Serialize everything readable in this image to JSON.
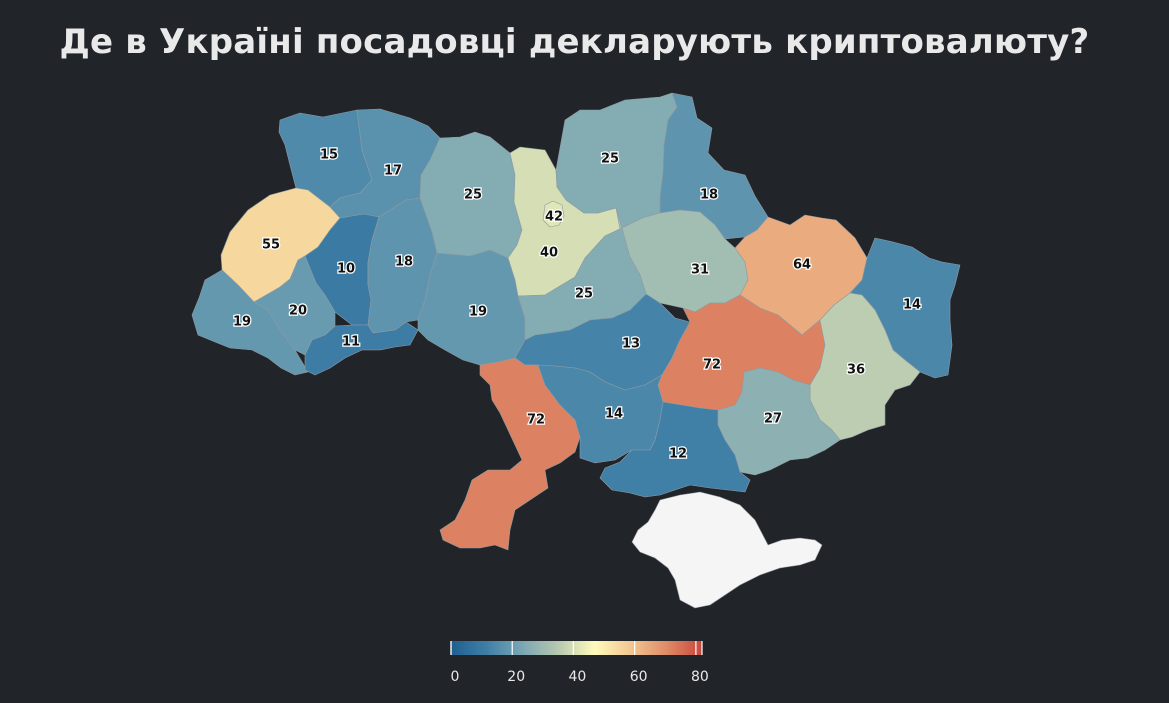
{
  "title": "Де в Україні посадовці декларують криптовалюту?",
  "colors": {
    "background": "#212428",
    "crimea": "#f5f5f5",
    "scale": [
      "#1f5f91",
      "#3f7fa6",
      "#7ba7b4",
      "#b7c9b0",
      "#fffbbd",
      "#f2c892",
      "#e08c68",
      "#c8473d"
    ]
  },
  "legend": {
    "min": 0,
    "max": 82,
    "tick_values": [
      0,
      20,
      40,
      60,
      80
    ],
    "tick_labels": [
      "0",
      "20",
      "40",
      "60",
      "80"
    ]
  },
  "regions": [
    {
      "id": "volyn",
      "value": 15,
      "label": "15"
    },
    {
      "id": "rivne",
      "value": 17,
      "label": "17"
    },
    {
      "id": "zhytomyr",
      "value": 25,
      "label": "25"
    },
    {
      "id": "kyiv-oblast",
      "value": 40,
      "label": "40"
    },
    {
      "id": "kyiv-city",
      "value": 42,
      "label": "42"
    },
    {
      "id": "chernihiv",
      "value": 25,
      "label": "25"
    },
    {
      "id": "sumy",
      "value": 18,
      "label": "18"
    },
    {
      "id": "lviv",
      "value": 55,
      "label": "55"
    },
    {
      "id": "ternopil",
      "value": 10,
      "label": "10"
    },
    {
      "id": "khmelnytskyi",
      "value": 18,
      "label": "18"
    },
    {
      "id": "poltava",
      "value": 31,
      "label": "31"
    },
    {
      "id": "kharkiv",
      "value": 64,
      "label": "64"
    },
    {
      "id": "luhansk",
      "value": 14,
      "label": "14"
    },
    {
      "id": "zakarpattia",
      "value": 19,
      "label": "19"
    },
    {
      "id": "ivano-frankivsk",
      "value": 20,
      "label": "20"
    },
    {
      "id": "chernivtsi",
      "value": 11,
      "label": "11"
    },
    {
      "id": "vinnytsia",
      "value": 19,
      "label": "19"
    },
    {
      "id": "cherkasy",
      "value": 25,
      "label": "25"
    },
    {
      "id": "kirovohrad",
      "value": 13,
      "label": "13"
    },
    {
      "id": "dnipropetrovsk",
      "value": 72,
      "label": "72"
    },
    {
      "id": "donetsk",
      "value": 36,
      "label": "36"
    },
    {
      "id": "odesa",
      "value": 72,
      "label": "72"
    },
    {
      "id": "mykolaiv",
      "value": 14,
      "label": "14"
    },
    {
      "id": "zaporizhzhia",
      "value": 27,
      "label": "27"
    },
    {
      "id": "kherson",
      "value": 12,
      "label": "12"
    },
    {
      "id": "crimea",
      "value": null,
      "label": ""
    }
  ]
}
